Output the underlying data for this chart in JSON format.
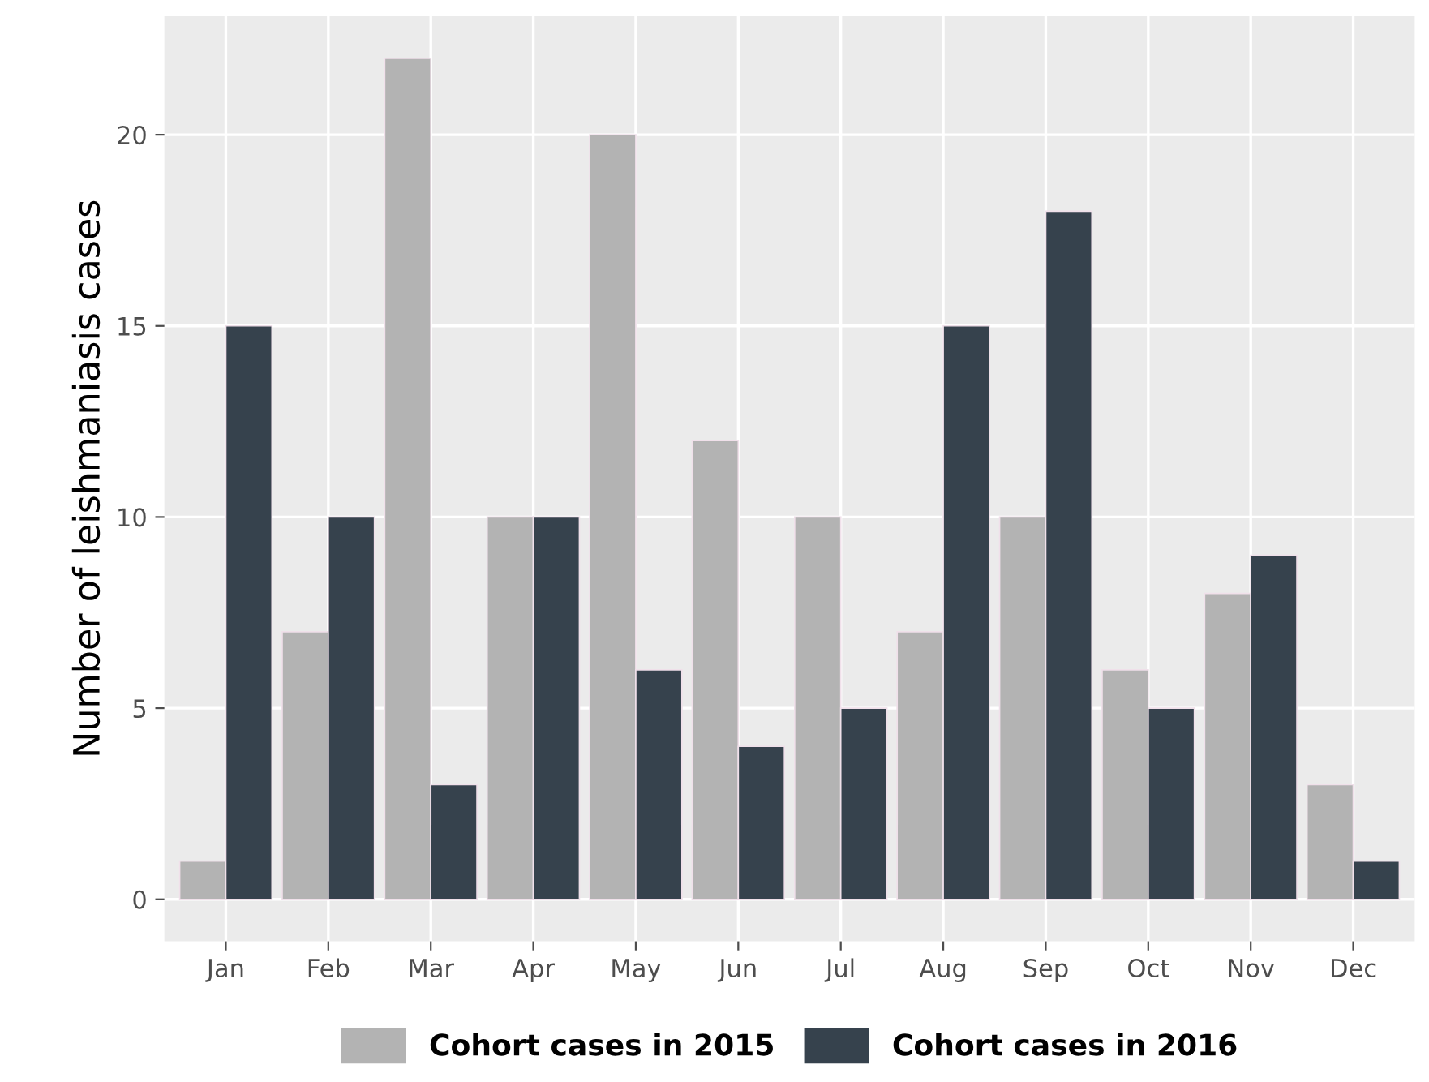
{
  "chart_data": {
    "type": "bar",
    "ylabel": "Number of leishmaniasis cases",
    "categories": [
      "Jan",
      "Feb",
      "Mar",
      "Apr",
      "May",
      "Jun",
      "Jul",
      "Aug",
      "Sep",
      "Oct",
      "Nov",
      "Dec"
    ],
    "series": [
      {
        "name": "Cohort cases in 2015",
        "color": "#b3b3b3",
        "values": [
          1,
          7,
          22,
          10,
          20,
          12,
          10,
          7,
          10,
          6,
          8,
          3
        ]
      },
      {
        "name": "Cohort cases in 2016",
        "color": "#36424d",
        "values": [
          15,
          10,
          3,
          10,
          6,
          4,
          5,
          15,
          18,
          5,
          9,
          1
        ]
      }
    ],
    "ylim": [
      -1.1,
      23.1
    ],
    "yticks": [
      0,
      5,
      10,
      15,
      20
    ],
    "grid": true,
    "legend": "bottom"
  }
}
